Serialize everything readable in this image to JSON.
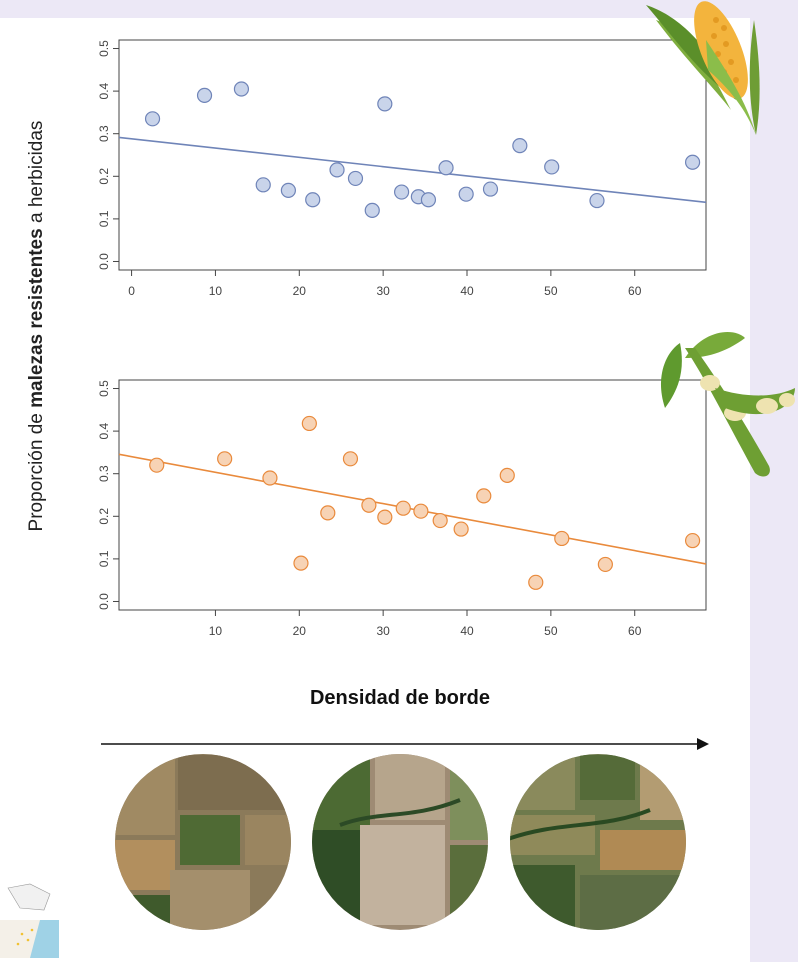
{
  "page": {
    "ylabel_prefix": "Proporción de ",
    "ylabel_bold": "malezas resistentes",
    "ylabel_suffix": " a herbicidas",
    "xlabel": "Densidad de borde",
    "colors": {
      "background_band": "#ece8f6",
      "corn_series": "#4060c8",
      "soy_series": "#f08a2c"
    },
    "icons": [
      "corn-icon",
      "soybean-icon",
      "map-icon"
    ]
  },
  "chart_data": [
    {
      "type": "scatter",
      "xlim": [
        0,
        68
      ],
      "ylim": [
        0,
        0.5
      ],
      "x_ticks": [
        0,
        10,
        20,
        30,
        40,
        50,
        60
      ],
      "y_ticks": [
        0.0,
        0.1,
        0.2,
        0.3,
        0.4,
        0.5
      ],
      "x_tick_labels": [
        "0",
        "10",
        "20",
        "30",
        "40",
        "50",
        "60"
      ],
      "y_tick_labels": [
        "0.0",
        "0.1",
        "0.2",
        "0.3",
        "0.4",
        "0.5"
      ],
      "points": [
        {
          "x": 2.5,
          "y": 0.335
        },
        {
          "x": 8.7,
          "y": 0.39
        },
        {
          "x": 13.1,
          "y": 0.405
        },
        {
          "x": 15.7,
          "y": 0.18
        },
        {
          "x": 18.7,
          "y": 0.167
        },
        {
          "x": 21.6,
          "y": 0.145
        },
        {
          "x": 24.5,
          "y": 0.215
        },
        {
          "x": 26.7,
          "y": 0.195
        },
        {
          "x": 28.7,
          "y": 0.12
        },
        {
          "x": 30.2,
          "y": 0.37
        },
        {
          "x": 32.2,
          "y": 0.163
        },
        {
          "x": 34.2,
          "y": 0.152
        },
        {
          "x": 35.4,
          "y": 0.145
        },
        {
          "x": 37.5,
          "y": 0.22
        },
        {
          "x": 39.9,
          "y": 0.158
        },
        {
          "x": 42.8,
          "y": 0.17
        },
        {
          "x": 46.3,
          "y": 0.272
        },
        {
          "x": 50.1,
          "y": 0.222
        },
        {
          "x": 55.5,
          "y": 0.143
        },
        {
          "x": 66.9,
          "y": 0.233
        }
      ],
      "trend": {
        "x": [
          0,
          68
        ],
        "y": [
          0.288,
          0.14
        ]
      },
      "grid": false
    },
    {
      "type": "scatter",
      "xlim": [
        0,
        68
      ],
      "ylim": [
        0,
        0.5
      ],
      "x_ticks": [
        10,
        20,
        30,
        40,
        50,
        60
      ],
      "y_ticks": [
        0.0,
        0.1,
        0.2,
        0.3,
        0.4,
        0.5
      ],
      "x_tick_labels": [
        "10",
        "20",
        "30",
        "40",
        "50",
        "60"
      ],
      "y_tick_labels": [
        "0.0",
        "0.1",
        "0.2",
        "0.3",
        "0.4",
        "0.5"
      ],
      "points": [
        {
          "x": 3.0,
          "y": 0.32
        },
        {
          "x": 11.1,
          "y": 0.335
        },
        {
          "x": 16.5,
          "y": 0.29
        },
        {
          "x": 20.2,
          "y": 0.09
        },
        {
          "x": 21.2,
          "y": 0.418
        },
        {
          "x": 23.4,
          "y": 0.208
        },
        {
          "x": 26.1,
          "y": 0.335
        },
        {
          "x": 28.3,
          "y": 0.226
        },
        {
          "x": 30.2,
          "y": 0.198
        },
        {
          "x": 32.4,
          "y": 0.219
        },
        {
          "x": 34.5,
          "y": 0.212
        },
        {
          "x": 36.8,
          "y": 0.19
        },
        {
          "x": 39.3,
          "y": 0.17
        },
        {
          "x": 42.0,
          "y": 0.248
        },
        {
          "x": 44.8,
          "y": 0.296
        },
        {
          "x": 48.2,
          "y": 0.045
        },
        {
          "x": 51.3,
          "y": 0.148
        },
        {
          "x": 56.5,
          "y": 0.087
        },
        {
          "x": 66.9,
          "y": 0.143
        }
      ],
      "trend": {
        "x": [
          0,
          68
        ],
        "y": [
          0.34,
          0.09
        ]
      },
      "grid": false
    }
  ]
}
